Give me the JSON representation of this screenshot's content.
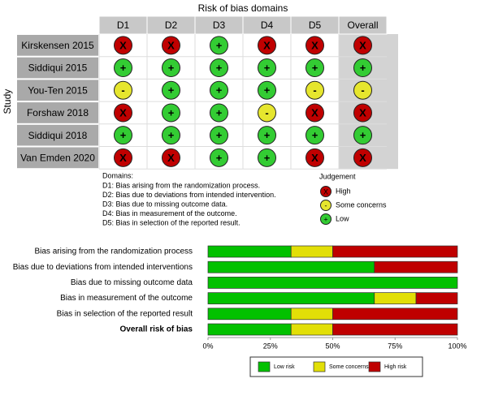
{
  "chart_data": [
    {
      "type": "traffic-light",
      "title": "Risk of bias domains",
      "y_label": "Study",
      "columns": [
        "D1",
        "D2",
        "D3",
        "D4",
        "D5",
        "Overall"
      ],
      "rows": [
        "Kirskensen 2015",
        "Siddiqui 2015",
        "You-Ten 2015",
        "Forshaw 2018",
        "Siddiqui 2018",
        "Van Emden 2020"
      ],
      "judgements": [
        [
          "X",
          "X",
          "+",
          "X",
          "X",
          "X"
        ],
        [
          "+",
          "+",
          "+",
          "+",
          "+",
          "+"
        ],
        [
          "-",
          "+",
          "+",
          "+",
          "-",
          "-"
        ],
        [
          "X",
          "+",
          "+",
          "-",
          "X",
          "X"
        ],
        [
          "+",
          "+",
          "+",
          "+",
          "+",
          "+"
        ],
        [
          "X",
          "X",
          "+",
          "+",
          "X",
          "X"
        ]
      ],
      "domains_title": "Domains:",
      "domains": [
        "D1: Bias arising from the randomization process.",
        "D2: Bias due to deviations from intended intervention.",
        "D3: Bias due to missing outcome data.",
        "D4: Bias in measurement of the outcome.",
        "D5: Bias in selection of the reported result."
      ],
      "legend_title": "Judgement",
      "legend": [
        {
          "symbol": "X",
          "label": "High",
          "color": "#c00000"
        },
        {
          "symbol": "-",
          "label": "Some concerns",
          "color": "#e6e62e"
        },
        {
          "symbol": "+",
          "label": "Low",
          "color": "#33cc33"
        }
      ]
    },
    {
      "type": "bar",
      "orientation": "horizontal",
      "stacked": true,
      "categories": [
        "Bias arising from the randomization process",
        "Bias due to deviations from intended interventions",
        "Bias due to missing outcome data",
        "Bias in measurement of the outcome",
        "Bias in selection of the reported result",
        "Overall risk of bias"
      ],
      "series": [
        {
          "name": "Low risk",
          "color": "#02c100",
          "values": [
            33.3,
            66.7,
            100,
            66.7,
            33.3,
            33.3
          ]
        },
        {
          "name": "Some concerns",
          "color": "#e2df07",
          "values": [
            16.7,
            0,
            0,
            16.7,
            16.7,
            16.7
          ]
        },
        {
          "name": "High risk",
          "color": "#bf0000",
          "values": [
            50,
            33.3,
            0,
            16.6,
            50,
            50
          ]
        }
      ],
      "xlim": [
        0,
        100
      ],
      "xticks": [
        {
          "value": 0,
          "label": "0%"
        },
        {
          "value": 25,
          "label": "25%"
        },
        {
          "value": 50,
          "label": "50%"
        },
        {
          "value": 75,
          "label": "75%"
        },
        {
          "value": 100,
          "label": "100%"
        }
      ],
      "legend_position": "bottom"
    }
  ]
}
